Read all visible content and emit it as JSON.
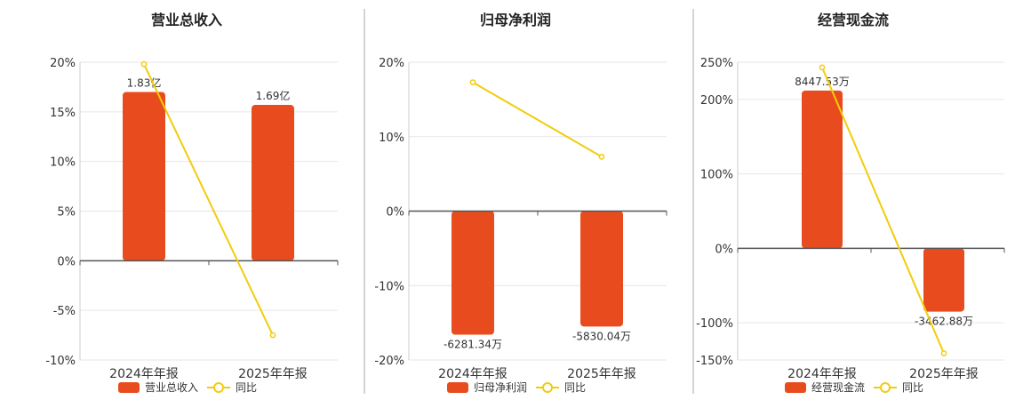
{
  "colors": {
    "bar": "#E84C1E",
    "line": "#F2CC0C",
    "grid": "#E6E6E6",
    "axis": "#555555",
    "divider": "#AAAAAA"
  },
  "legend_line_label": "同比",
  "chart_data": [
    {
      "type": "bar+line",
      "title": "营业总收入",
      "categories": [
        "2024年年报",
        "2025年年报"
      ],
      "bar_series": {
        "name": "营业总收入",
        "values": [
          17,
          15.7
        ],
        "labels": [
          "1.83亿",
          "1.69亿"
        ]
      },
      "line_series": {
        "name": "同比",
        "values": [
          19.8,
          -7.5
        ]
      },
      "ylim": [
        -10,
        20
      ],
      "yticks": [
        "20%",
        "15%",
        "10%",
        "5%",
        "0%",
        "-5%",
        "-10%"
      ],
      "grid": true,
      "legend": "bottom"
    },
    {
      "type": "bar+line",
      "title": "归母净利润",
      "categories": [
        "2024年年报",
        "2025年年报"
      ],
      "bar_series": {
        "name": "归母净利润",
        "values": [
          -16.6,
          -15.5
        ],
        "labels": [
          "-6281.34万",
          "-5830.04万"
        ]
      },
      "line_series": {
        "name": "同比",
        "values": [
          17.3,
          7.3
        ]
      },
      "ylim": [
        -20,
        20
      ],
      "yticks": [
        "20%",
        "10%",
        "0%",
        "-10%",
        "-20%"
      ],
      "grid": true,
      "legend": "bottom"
    },
    {
      "type": "bar+line",
      "title": "经营现金流",
      "categories": [
        "2024年年报",
        "2025年年报"
      ],
      "bar_series": {
        "name": "经营现金流",
        "values": [
          212,
          -85
        ],
        "labels": [
          "8447.53万",
          "-3462.88万"
        ]
      },
      "line_series": {
        "name": "同比",
        "values": [
          243,
          -141
        ]
      },
      "ylim": [
        -150,
        250
      ],
      "yticks": [
        "250%",
        "200%",
        "100%",
        "0%",
        "-100%",
        "-150%"
      ],
      "grid": true,
      "legend": "bottom"
    }
  ]
}
